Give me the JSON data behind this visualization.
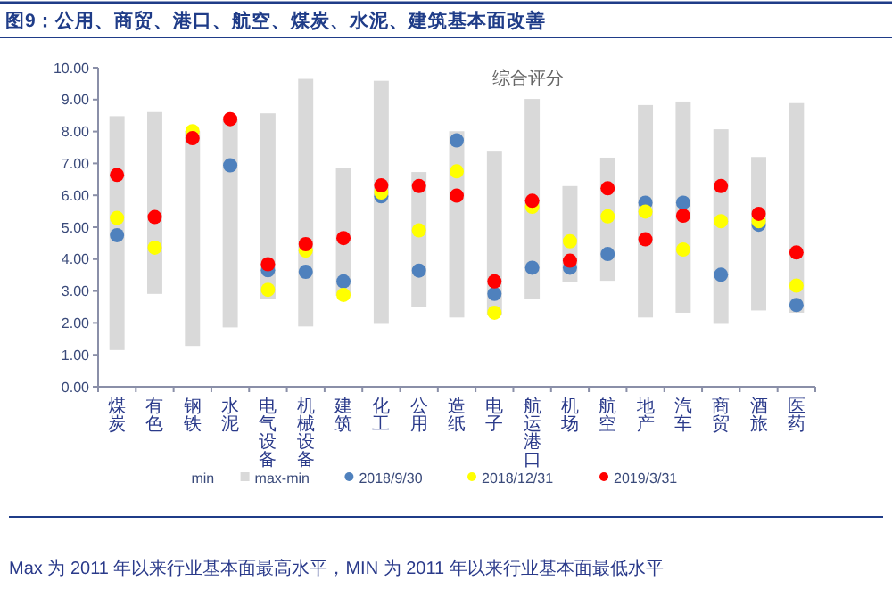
{
  "chart_data": {
    "type": "bar",
    "title": "图9：公用、商贸、港口、航空、煤炭、水泥、建筑基本面改善",
    "categories": [
      "煤炭",
      "有色",
      "钢铁",
      "水泥",
      "电气设备",
      "机械设备",
      "建筑",
      "化工",
      "公用",
      "造纸",
      "电子",
      "航运港口",
      "机场",
      "航空",
      "地产",
      "汽车",
      "商贸",
      "酒旅",
      "医药"
    ],
    "series": [
      {
        "name": "max-min",
        "color": "#d9d9d9",
        "base": [
          1.15,
          2.91,
          1.28,
          1.86,
          2.76,
          1.89,
          2.85,
          1.97,
          2.49,
          2.17,
          2.26,
          2.76,
          3.27,
          3.32,
          2.17,
          2.32,
          1.97,
          2.39,
          2.32
        ],
        "values": [
          7.33,
          5.7,
          6.73,
          6.54,
          5.81,
          7.76,
          4.01,
          7.62,
          4.24,
          5.84,
          5.11,
          6.26,
          3.02,
          3.86,
          6.66,
          6.62,
          6.1,
          4.81,
          6.57
        ]
      },
      {
        "name": "2018/9/30",
        "type": "scatter",
        "color": "#4f81bd",
        "x": [
          "煤炭",
          "有色",
          "钢铁",
          "水泥",
          "电气设备",
          "机械设备",
          "建筑",
          "化工",
          "公用",
          "造纸",
          "电子",
          "航运港口",
          "机场",
          "航空",
          "地产",
          "汽车",
          "商贸",
          "酒旅",
          "医药"
        ],
        "values": [
          4.75,
          null,
          null,
          6.94,
          3.65,
          3.6,
          3.3,
          5.97,
          3.64,
          7.72,
          2.91,
          3.73,
          3.73,
          4.16,
          5.77,
          5.77,
          3.51,
          5.08,
          2.56
        ]
      },
      {
        "name": "2018/12/31",
        "type": "scatter",
        "color": "#ffff00",
        "x": [
          "煤炭",
          "有色",
          "钢铁",
          "水泥",
          "电气设备",
          "机械设备",
          "建筑",
          "化工",
          "公用",
          "造纸",
          "电子",
          "航运港口",
          "机场",
          "航空",
          "地产",
          "汽车",
          "商贸",
          "酒旅",
          "医药"
        ],
        "values": [
          5.29,
          4.36,
          8.01,
          null,
          3.04,
          4.27,
          2.88,
          6.09,
          4.9,
          6.75,
          2.32,
          5.64,
          4.56,
          5.34,
          5.49,
          4.3,
          5.19,
          5.19,
          3.17
        ]
      },
      {
        "name": "2019/3/31",
        "type": "scatter",
        "color": "#ff0000",
        "x": [
          "煤炭",
          "有色",
          "钢铁",
          "水泥",
          "电气设备",
          "机械设备",
          "建筑",
          "化工",
          "公用",
          "造纸",
          "电子",
          "航运港口",
          "机场",
          "航空",
          "地产",
          "汽车",
          "商贸",
          "酒旅",
          "医药"
        ],
        "values": [
          6.64,
          5.32,
          7.79,
          8.39,
          3.84,
          4.47,
          4.66,
          6.31,
          6.29,
          5.99,
          3.3,
          5.83,
          3.95,
          6.22,
          4.62,
          5.36,
          6.29,
          5.42,
          4.21
        ]
      }
    ],
    "ylim": [
      0,
      10
    ],
    "yticks": [
      {
        "value": 0,
        "label": "0.00"
      },
      {
        "value": 1,
        "label": "1.00"
      },
      {
        "value": 2,
        "label": "2.00"
      },
      {
        "value": 3,
        "label": "3.00"
      },
      {
        "value": 4,
        "label": "4.00"
      },
      {
        "value": 5,
        "label": "5.00"
      },
      {
        "value": 6,
        "label": "6.00"
      },
      {
        "value": 7,
        "label": "7.00"
      },
      {
        "value": 8,
        "label": "8.00"
      },
      {
        "value": 9,
        "label": "9.00"
      },
      {
        "value": 10,
        "label": "10.00"
      }
    ],
    "marker": "circle",
    "legend": "bottom",
    "annotations": [
      "综合评分",
      "min",
      "Max 为 2011 年以来行业基本面最高水平，MIN 为 2011 年以来行业基本面最低水平"
    ]
  }
}
